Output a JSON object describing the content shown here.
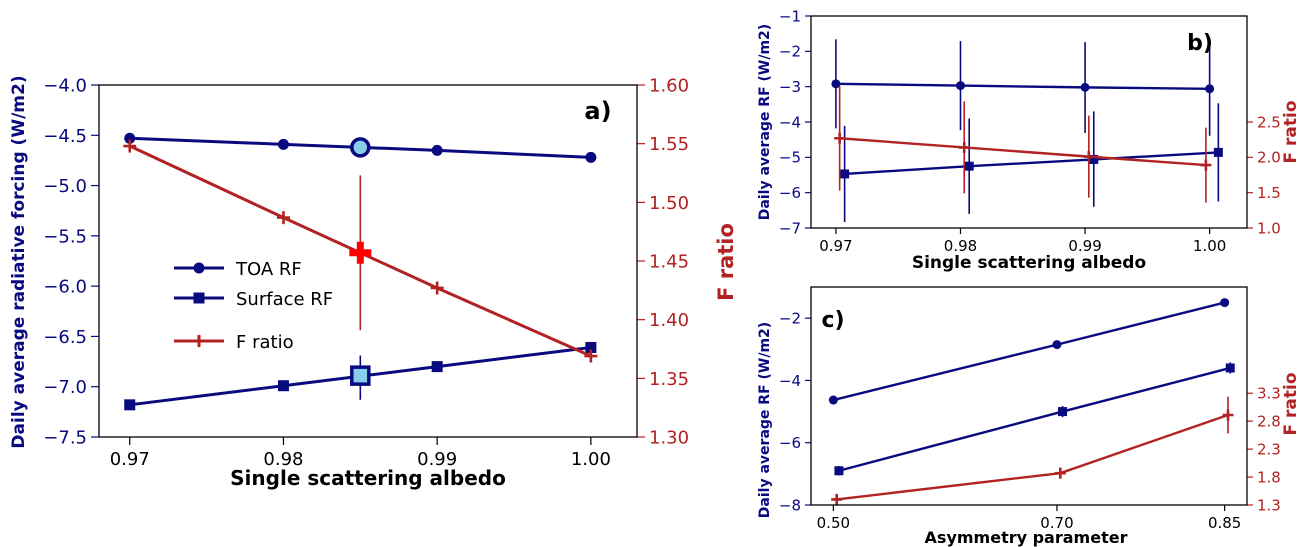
{
  "colors": {
    "navy": "#0a0a80",
    "red": "#b22222",
    "highlight_fill": "#87ceeb",
    "highlight_red": "#ff0000",
    "frame": "#000000"
  },
  "legend": {
    "items": [
      {
        "label": "TOA RF",
        "marker": "circle",
        "color": "#0a0a80"
      },
      {
        "label": "Surface RF",
        "marker": "square",
        "color": "#0a0a80"
      },
      {
        "label": "F ratio",
        "marker": "plus",
        "color": "#b22222"
      }
    ]
  },
  "chart_data": [
    {
      "panel": "a)",
      "type": "line",
      "xlabel": "Single scattering albedo",
      "ylabel": "Daily average radiative forcing (W/m2)",
      "y2label": "F ratio",
      "xlim": [
        0.968,
        1.003
      ],
      "ylim": [
        -7.5,
        -4.0
      ],
      "y2lim": [
        1.3,
        1.6
      ],
      "xticks": [
        "0.97",
        "0.98",
        "0.99",
        "1.00"
      ],
      "xtick_values": [
        0.97,
        0.98,
        0.99,
        1.0
      ],
      "yticks": [
        "−4.0",
        "−4.5",
        "−5.0",
        "−5.5",
        "−6.0",
        "−6.5",
        "−7.0",
        "−7.5"
      ],
      "ytick_values": [
        -4.0,
        -4.5,
        -5.0,
        -5.5,
        -6.0,
        -6.5,
        -7.0,
        -7.5
      ],
      "y2ticks": [
        "1.60",
        "1.55",
        "1.50",
        "1.45",
        "1.40",
        "1.35",
        "1.30"
      ],
      "y2tick_values": [
        1.6,
        1.55,
        1.5,
        1.45,
        1.4,
        1.35,
        1.3
      ],
      "x": [
        0.97,
        0.98,
        0.99,
        1.0
      ],
      "series": [
        {
          "name": "TOA RF",
          "axis": "left",
          "marker": "circle",
          "values": [
            -4.53,
            -4.59,
            -4.65,
            -4.72
          ]
        },
        {
          "name": "Surface RF",
          "axis": "left",
          "marker": "square",
          "values": [
            -7.18,
            -6.99,
            -6.8,
            -6.61
          ]
        },
        {
          "name": "F ratio",
          "axis": "right",
          "marker": "plus",
          "values": [
            1.548,
            1.487,
            1.427,
            1.369
          ]
        }
      ],
      "highlight": {
        "x": 0.985,
        "toa": -4.62,
        "surface": -6.89,
        "surface_err": [
          -7.13,
          -6.69
        ],
        "fratio": 1.457,
        "fratio_err": [
          1.391,
          1.523
        ]
      }
    },
    {
      "panel": "b)",
      "type": "line",
      "xlabel": "Single scattering albedo",
      "ylabel": "Daily average RF (W/m2)",
      "y2label": "F ratio",
      "xlim": [
        0.968,
        1.003
      ],
      "ylim": [
        -7,
        -1
      ],
      "y2lim": [
        1.0,
        4.0
      ],
      "xticks": [
        "0.97",
        "0.98",
        "0.99",
        "1.00"
      ],
      "xtick_values": [
        0.97,
        0.98,
        0.99,
        1.0
      ],
      "yticks": [
        "−1",
        "−2",
        "−3",
        "−4",
        "−5",
        "−6",
        "−7"
      ],
      "ytick_values": [
        -1,
        -2,
        -3,
        -4,
        -5,
        -6,
        -7
      ],
      "y2ticks": [
        "2.5",
        "2.0",
        "1.5",
        "1.0"
      ],
      "y2tick_values": [
        2.5,
        2.0,
        1.5,
        1.0
      ],
      "series": [
        {
          "name": "TOA RF",
          "axis": "left",
          "marker": "circle",
          "x": [
            0.97,
            0.98,
            0.99,
            1.0
          ],
          "values": [
            -2.92,
            -2.97,
            -3.02,
            -3.06
          ],
          "err": [
            [
              -4.18,
              -1.66
            ],
            [
              -4.23,
              -1.71
            ],
            [
              -4.31,
              -1.74
            ],
            [
              -4.39,
              -1.76
            ]
          ]
        },
        {
          "name": "Surface RF",
          "axis": "left",
          "marker": "square",
          "x": [
            0.9707,
            0.9807,
            0.9907,
            1.0007
          ],
          "values": [
            -5.47,
            -5.25,
            -5.06,
            -4.86
          ],
          "err": [
            [
              -6.83,
              -4.11
            ],
            [
              -6.6,
              -3.9
            ],
            [
              -6.4,
              -3.7
            ],
            [
              -6.25,
              -3.47
            ]
          ]
        },
        {
          "name": "F ratio",
          "axis": "right",
          "marker": "plus",
          "x": [
            0.9703,
            0.9803,
            0.9903,
            0.9997
          ],
          "values": [
            2.27,
            2.14,
            2.01,
            1.89
          ],
          "err": [
            [
              1.53,
              3.01
            ],
            [
              1.49,
              2.79
            ],
            [
              1.43,
              2.59
            ],
            [
              1.36,
              2.42
            ]
          ]
        }
      ]
    },
    {
      "panel": "c)",
      "type": "line",
      "xlabel": "Asymmetry parameter",
      "ylabel": "Daily average RF (W/m2)",
      "y2label": "F ratio",
      "xlim": [
        0.48,
        0.87
      ],
      "ylim": [
        -8,
        -1
      ],
      "y2lim": [
        1.3,
        5.2
      ],
      "xticks": [
        "0.50",
        "0.70",
        "0.85"
      ],
      "xtick_values": [
        0.5,
        0.7,
        0.85
      ],
      "yticks": [
        "−2",
        "−4",
        "−6",
        "−8"
      ],
      "ytick_values": [
        -2,
        -4,
        -6,
        -8
      ],
      "y2ticks": [
        "3.3",
        "2.8",
        "2.3",
        "1.8",
        "1.3"
      ],
      "y2tick_values": [
        3.3,
        2.8,
        2.3,
        1.8,
        1.3
      ],
      "series": [
        {
          "name": "TOA RF",
          "axis": "left",
          "marker": "circle",
          "x": [
            0.5,
            0.7,
            0.85
          ],
          "values": [
            -4.63,
            -2.85,
            -1.5
          ]
        },
        {
          "name": "Surface RF",
          "axis": "left",
          "marker": "square",
          "x": [
            0.505,
            0.705,
            0.855
          ],
          "values": [
            -6.9,
            -5.0,
            -3.6
          ],
          "err": [
            [
              -7.05,
              -6.75
            ],
            [
              -5.18,
              -4.82
            ],
            [
              -3.78,
              -3.42
            ]
          ]
        },
        {
          "name": "F ratio",
          "axis": "right",
          "marker": "plus",
          "x": [
            0.503,
            0.703,
            0.853
          ],
          "values": [
            1.4,
            1.87,
            2.91
          ],
          "err": [
            [
              1.34,
              1.46
            ],
            [
              1.77,
              1.97
            ],
            [
              2.58,
              3.24
            ]
          ]
        }
      ]
    }
  ]
}
